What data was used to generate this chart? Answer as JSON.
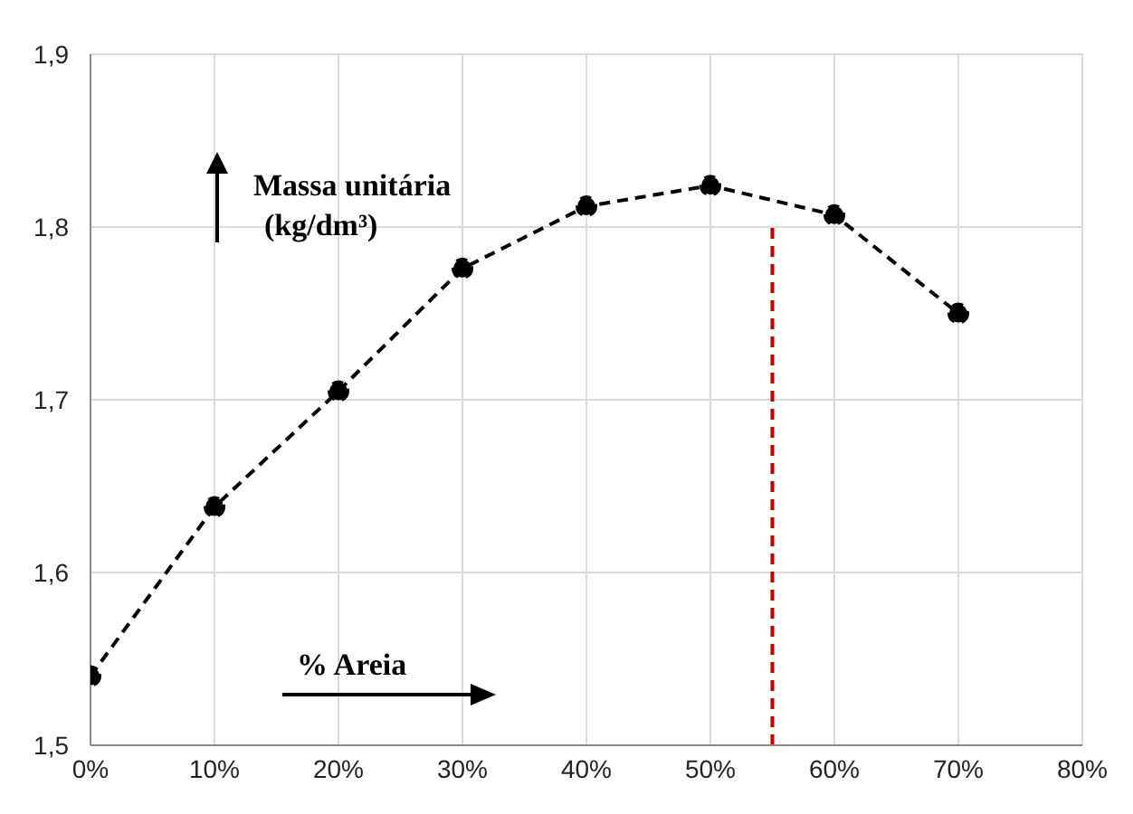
{
  "chart_data": {
    "type": "line",
    "xlim": [
      0,
      80
    ],
    "ylim": [
      1.5,
      1.9
    ],
    "xticks": [
      {
        "value": 0,
        "label": "0%"
      },
      {
        "value": 10,
        "label": "10%"
      },
      {
        "value": 20,
        "label": "20%"
      },
      {
        "value": 30,
        "label": "30%"
      },
      {
        "value": 40,
        "label": "40%"
      },
      {
        "value": 50,
        "label": "50%"
      },
      {
        "value": 60,
        "label": "60%"
      },
      {
        "value": 70,
        "label": "70%"
      },
      {
        "value": 80,
        "label": "80%"
      }
    ],
    "yticks": [
      {
        "value": 1.5,
        "label": "1,5"
      },
      {
        "value": 1.6,
        "label": "1,6"
      },
      {
        "value": 1.7,
        "label": "1,7"
      },
      {
        "value": 1.8,
        "label": "1,8"
      },
      {
        "value": 1.9,
        "label": "1,9"
      }
    ],
    "grid": true,
    "annotations": [
      "Massa unitária",
      "(kg/dm³)",
      "% Areia"
    ],
    "series": [
      {
        "color": "#000000",
        "x": [
          0,
          10,
          20,
          30,
          40,
          50,
          60,
          70
        ],
        "values": [
          1.54,
          1.638,
          1.705,
          1.776,
          1.812,
          1.824,
          1.807,
          1.75
        ],
        "marker": "circle",
        "line_style": "dashed"
      },
      {
        "color": "#c00000",
        "x": [
          55,
          55
        ],
        "values": [
          1.5,
          1.8
        ],
        "marker": "none",
        "line_style": "dashed"
      }
    ]
  }
}
